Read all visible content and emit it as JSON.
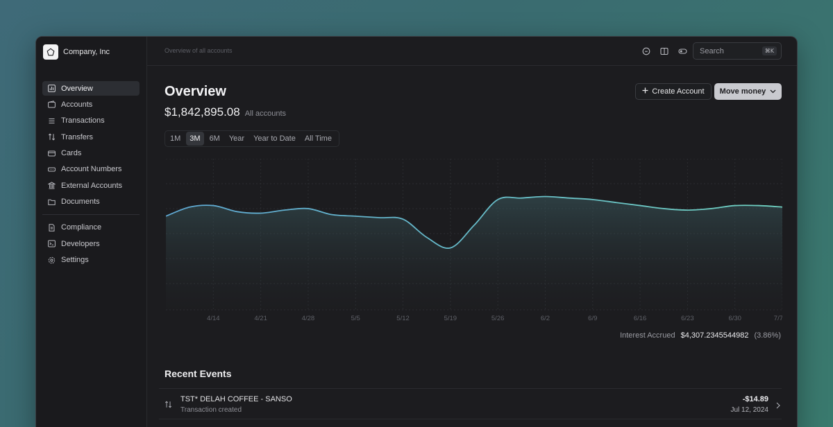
{
  "brand": {
    "name": "Company, Inc"
  },
  "sidebar": {
    "items": [
      {
        "label": "Overview",
        "icon": "chart-icon"
      },
      {
        "label": "Accounts",
        "icon": "wallet-icon"
      },
      {
        "label": "Transactions",
        "icon": "list-icon"
      },
      {
        "label": "Transfers",
        "icon": "arrows-updown-icon"
      },
      {
        "label": "Cards",
        "icon": "card-icon"
      },
      {
        "label": "Account Numbers",
        "icon": "hash-icon"
      },
      {
        "label": "External Accounts",
        "icon": "bank-icon"
      },
      {
        "label": "Documents",
        "icon": "folder-icon"
      }
    ],
    "secondary_items": [
      {
        "label": "Compliance",
        "icon": "document-icon"
      },
      {
        "label": "Developers",
        "icon": "terminal-icon"
      },
      {
        "label": "Settings",
        "icon": "gear-icon"
      }
    ]
  },
  "topbar": {
    "breadcrumb": "Overview of all accounts",
    "search_placeholder": "Search",
    "search_shortcut": "⌘K"
  },
  "page": {
    "title": "Overview",
    "balance": "$1,842,895.08",
    "balance_scope": "All accounts",
    "create_label": "Create Account",
    "move_label": "Move money"
  },
  "ranges": [
    "1M",
    "3M",
    "6M",
    "Year",
    "Year to Date",
    "All Time"
  ],
  "selected_range": "3M",
  "chart_data": {
    "type": "area",
    "x": [
      "4/7",
      "4/10",
      "4/14",
      "4/17",
      "4/21",
      "4/24",
      "4/28",
      "5/1",
      "5/5",
      "5/8",
      "5/12",
      "5/15",
      "5/19",
      "5/22",
      "5/26",
      "5/29",
      "6/2",
      "6/6",
      "6/9",
      "6/13",
      "6/16",
      "6/20",
      "6/23",
      "6/27",
      "6/30",
      "7/3",
      "7/7"
    ],
    "x_ticks": [
      "4/14",
      "4/21",
      "4/28",
      "5/5",
      "5/12",
      "5/19",
      "5/26",
      "6/2",
      "6/9",
      "6/16",
      "6/23",
      "6/30",
      "7/7"
    ],
    "values": [
      62,
      68,
      69,
      65,
      64,
      66,
      67,
      63,
      62,
      61,
      60,
      48,
      41,
      56,
      73,
      74,
      75,
      74,
      73,
      71,
      69,
      67,
      66,
      67,
      69,
      69,
      68
    ],
    "ylim": [
      0,
      100
    ],
    "grid": true,
    "line_color": "#5fa8d3",
    "line_color_end": "#6fd0c0"
  },
  "interest": {
    "label": "Interest Accrued",
    "value": "$4,307.2345544982",
    "pct": "(3.86%)"
  },
  "events": {
    "title": "Recent Events",
    "rows": [
      {
        "title": "TST* DELAH COFFEE - SANSO",
        "subtitle": "Transaction created",
        "amount": "-$14.89",
        "date": "Jul 12, 2024"
      }
    ]
  }
}
